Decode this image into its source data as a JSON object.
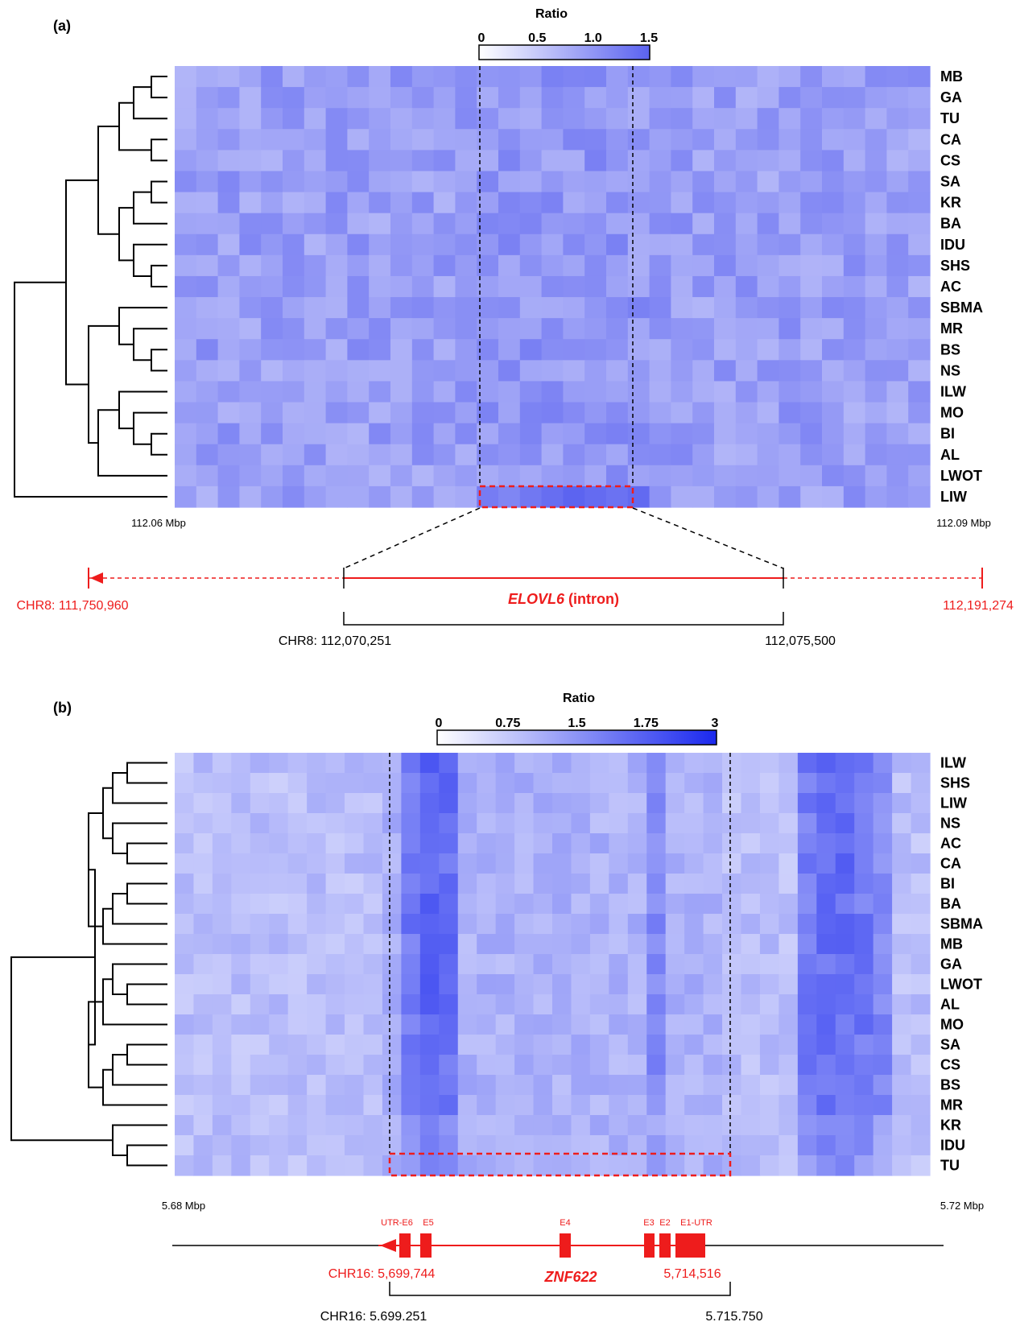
{
  "chart_data": [
    {
      "type": "heatmap",
      "panel_label": "(a)",
      "colorbar": {
        "title": "Ratio",
        "tick_labels": [
          "0",
          "0.5",
          "1.0",
          "1.5"
        ],
        "range": [
          0,
          1.5
        ],
        "color_low": "#ffffff",
        "color_high": "#5a62f0"
      },
      "rows": [
        "MB",
        "GA",
        "TU",
        "CA",
        "CS",
        "SA",
        "KR",
        "BA",
        "IDU",
        "SHS",
        "AC",
        "SBMA",
        "MR",
        "BS",
        "NS",
        "ILW",
        "MO",
        "BI",
        "AL",
        "LWOT",
        "LIW"
      ],
      "n_columns": 35,
      "x_start_label": "112.06 Mbp",
      "x_end_label": "112.09 Mbp",
      "highlight": {
        "first_column": 14,
        "last_column": 21,
        "row": "LIW"
      },
      "dendrogram": true,
      "gene": {
        "name": "ELOVL6",
        "suffix": "(intron)",
        "start_label": "CHR8: 111,750,960",
        "end_label": "112,191,274",
        "region_start_label": "CHR8: 112,070,251",
        "region_end_label": "112,075,500"
      }
    },
    {
      "type": "heatmap",
      "panel_label": "(b)",
      "colorbar": {
        "title": "Ratio",
        "tick_labels": [
          "0",
          "0.75",
          "1.5",
          "1.75",
          "3"
        ],
        "range": [
          0,
          3
        ],
        "color_low": "#ffffff",
        "color_high": "#1a28ee"
      },
      "rows": [
        "ILW",
        "SHS",
        "LIW",
        "NS",
        "AC",
        "CA",
        "BI",
        "BA",
        "SBMA",
        "MB",
        "GA",
        "LWOT",
        "AL",
        "MO",
        "SA",
        "CS",
        "BS",
        "MR",
        "KR",
        "IDU",
        "TU"
      ],
      "n_columns": 40,
      "x_start_label": "5.68 Mbp",
      "x_end_label": "5.72 Mbp",
      "highlight": {
        "first_column": 11,
        "last_column": 28,
        "row": "TU"
      },
      "dendrogram": true,
      "gene": {
        "name": "ZNF622",
        "exons": [
          "UTR-E6",
          "E5",
          "E4",
          "E3",
          "E2",
          "E1-UTR"
        ],
        "start_label": "CHR16: 5,699,744",
        "end_label": "5,714,516",
        "region_start_label": "CHR16: 5.699.251",
        "region_end_label": "5.715.750"
      }
    }
  ],
  "colors": {
    "gene_red": "#ee1c1c",
    "dashed_box": "#ee1c1c",
    "black": "#000000"
  }
}
